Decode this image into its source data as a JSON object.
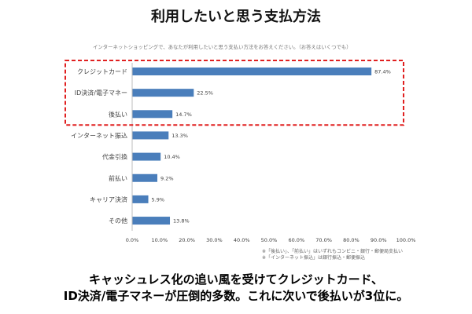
{
  "chart_data": {
    "type": "bar",
    "orientation": "horizontal",
    "title": "利用したいと思う支払方法",
    "subtitle": "インターネットショッピングで、あなたが利用したいと思う支払い方法をお答えください。（お答えはいくつでも）",
    "categories": [
      "クレジットカード",
      "ID決済/電子マネー",
      "後払い",
      "インターネット振込",
      "代金引換",
      "前払い",
      "キャリア決済",
      "その他"
    ],
    "values": [
      87.4,
      22.5,
      14.7,
      13.3,
      10.4,
      9.2,
      5.9,
      13.8
    ],
    "data_labels": [
      "87.4%",
      "22.5%",
      "14.7%",
      "13.3%",
      "10.4%",
      "9.2%",
      "5.9%",
      "13.8%"
    ],
    "xlim": [
      0,
      100
    ],
    "x_ticks": [
      0,
      10,
      20,
      30,
      40,
      50,
      60,
      70,
      80,
      90,
      100
    ],
    "x_tick_labels": [
      "0.0%",
      "10.0%",
      "20.0%",
      "30.0%",
      "40.0%",
      "50.0%",
      "60.0%",
      "70.0%",
      "80.0%",
      "90.0%",
      "100.0%"
    ],
    "grid": false,
    "legend": "none",
    "bar_color": "#4a7ebb",
    "highlight_rows": [
      0,
      1,
      2
    ],
    "highlight_color": "#e02020"
  },
  "footnotes": [
    "※「後払い」、「前払い」はいずれもコンビニ・銀行・郵便局支払い",
    "※「インターネット振込」は銀行振込・郵便振込"
  ],
  "conclusion": [
    "キャッシュレス化の追い風を受けてクレジットカード、",
    "ID決済/電子マネーが圧倒的多数。これに次いで後払いが3位に。"
  ]
}
